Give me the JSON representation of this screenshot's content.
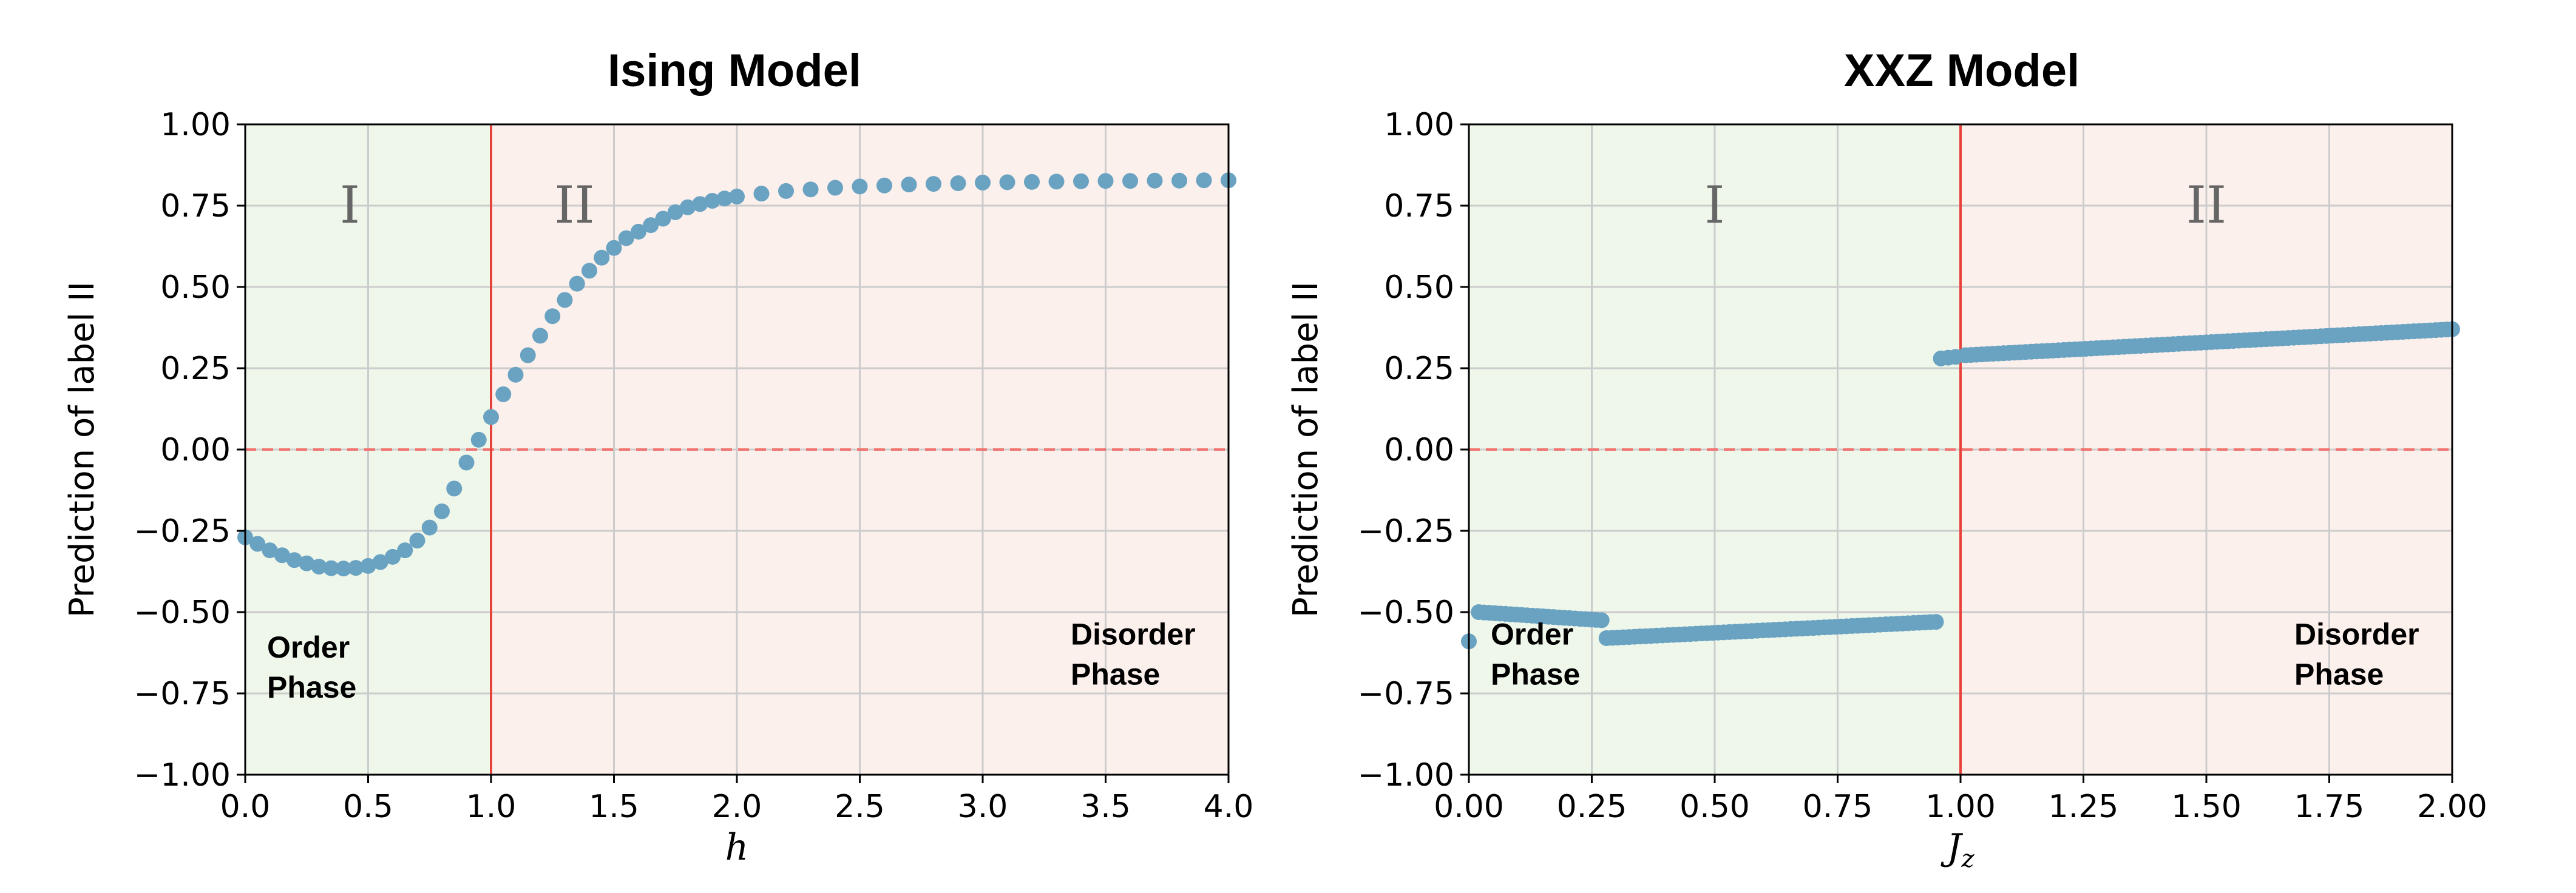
{
  "colors": {
    "order_region": "#eef7ea",
    "disorder_region": "#fbf0ec",
    "grid": "#cccccc",
    "marker": "#6aa2c2",
    "critical_line": "#e8413a",
    "zero_line": "#f07470"
  },
  "chart_data": [
    {
      "type": "scatter",
      "title": "Ising Model",
      "xlabel": "h",
      "ylabel": "Prediction of label II",
      "xlim": [
        0.0,
        4.0
      ],
      "ylim": [
        -1.0,
        1.0
      ],
      "xticks": [
        "0.0",
        "0.5",
        "1.0",
        "1.5",
        "2.0",
        "2.5",
        "3.0",
        "3.5",
        "4.0"
      ],
      "yticks": [
        "−1.00",
        "−0.75",
        "−0.50",
        "−0.25",
        "0.00",
        "0.25",
        "0.50",
        "0.75",
        "1.00"
      ],
      "grid": true,
      "critical_x": 1.0,
      "reference_y": 0.0,
      "regions": [
        {
          "name": "order",
          "from": 0.0,
          "to": 1.0,
          "roman": "I",
          "phase_line1": "Order",
          "phase_line2": "Phase"
        },
        {
          "name": "disorder",
          "from": 1.0,
          "to": 4.0,
          "roman": "II",
          "phase_line1": "Disorder",
          "phase_line2": "Phase"
        }
      ],
      "series": [
        {
          "name": "Prediction",
          "points": [
            [
              0.0,
              -0.27
            ],
            [
              0.05,
              -0.29
            ],
            [
              0.1,
              -0.31
            ],
            [
              0.15,
              -0.325
            ],
            [
              0.2,
              -0.34
            ],
            [
              0.25,
              -0.35
            ],
            [
              0.3,
              -0.36
            ],
            [
              0.35,
              -0.365
            ],
            [
              0.4,
              -0.366
            ],
            [
              0.45,
              -0.364
            ],
            [
              0.5,
              -0.358
            ],
            [
              0.55,
              -0.346
            ],
            [
              0.6,
              -0.33
            ],
            [
              0.65,
              -0.31
            ],
            [
              0.7,
              -0.28
            ],
            [
              0.75,
              -0.24
            ],
            [
              0.8,
              -0.19
            ],
            [
              0.85,
              -0.12
            ],
            [
              0.9,
              -0.04
            ],
            [
              0.95,
              0.03
            ],
            [
              1.0,
              0.1
            ],
            [
              1.05,
              0.17
            ],
            [
              1.1,
              0.23
            ],
            [
              1.15,
              0.29
            ],
            [
              1.2,
              0.35
            ],
            [
              1.25,
              0.41
            ],
            [
              1.3,
              0.46
            ],
            [
              1.35,
              0.51
            ],
            [
              1.4,
              0.55
            ],
            [
              1.45,
              0.59
            ],
            [
              1.5,
              0.62
            ],
            [
              1.55,
              0.65
            ],
            [
              1.6,
              0.67
            ],
            [
              1.65,
              0.69
            ],
            [
              1.7,
              0.71
            ],
            [
              1.75,
              0.73
            ],
            [
              1.8,
              0.745
            ],
            [
              1.85,
              0.755
            ],
            [
              1.9,
              0.765
            ],
            [
              1.95,
              0.772
            ],
            [
              2.0,
              0.778
            ],
            [
              2.1,
              0.787
            ],
            [
              2.2,
              0.795
            ],
            [
              2.3,
              0.8
            ],
            [
              2.4,
              0.805
            ],
            [
              2.5,
              0.809
            ],
            [
              2.6,
              0.812
            ],
            [
              2.7,
              0.815
            ],
            [
              2.8,
              0.817
            ],
            [
              2.9,
              0.819
            ],
            [
              3.0,
              0.821
            ],
            [
              3.1,
              0.822
            ],
            [
              3.2,
              0.823
            ],
            [
              3.3,
              0.824
            ],
            [
              3.4,
              0.825
            ],
            [
              3.5,
              0.826
            ],
            [
              3.6,
              0.826
            ],
            [
              3.7,
              0.827
            ],
            [
              3.8,
              0.827
            ],
            [
              3.9,
              0.828
            ],
            [
              4.0,
              0.828
            ]
          ]
        }
      ]
    },
    {
      "type": "scatter",
      "title": "XXZ Model",
      "xlabel": "J",
      "xlabel_sub": "z",
      "ylabel": "Prediction of label II",
      "xlim": [
        0.0,
        2.0
      ],
      "ylim": [
        -1.0,
        1.0
      ],
      "xticks": [
        "0.00",
        "0.25",
        "0.50",
        "0.75",
        "1.00",
        "1.25",
        "1.50",
        "1.75",
        "2.00"
      ],
      "yticks": [
        "−1.00",
        "−0.75",
        "−0.50",
        "−0.25",
        "0.00",
        "0.25",
        "0.50",
        "0.75",
        "1.00"
      ],
      "grid": true,
      "critical_x": 1.0,
      "reference_y": 0.0,
      "regions": [
        {
          "name": "order",
          "from": 0.0,
          "to": 1.0,
          "roman": "I",
          "phase_line1": "Order",
          "phase_line2": "Phase"
        },
        {
          "name": "disorder",
          "from": 1.0,
          "to": 2.0,
          "roman": "II",
          "phase_line1": "Disorder",
          "phase_line2": "Phase"
        }
      ],
      "series": [
        {
          "name": "Prediction",
          "segments": [
            {
              "x_from": 0.0,
              "x_to": 0.0,
              "y_from": -0.59,
              "y_to": -0.59,
              "n": 1
            },
            {
              "x_from": 0.02,
              "x_to": 0.27,
              "y_from": -0.5,
              "y_to": -0.525,
              "n": 24
            },
            {
              "x_from": 0.28,
              "x_to": 0.95,
              "y_from": -0.58,
              "y_to": -0.53,
              "n": 60
            },
            {
              "x_from": 0.96,
              "x_to": 0.99,
              "y_from": 0.28,
              "y_to": 0.285,
              "n": 3
            },
            {
              "x_from": 1.01,
              "x_to": 2.0,
              "y_from": 0.29,
              "y_to": 0.37,
              "n": 90
            }
          ]
        }
      ]
    }
  ]
}
